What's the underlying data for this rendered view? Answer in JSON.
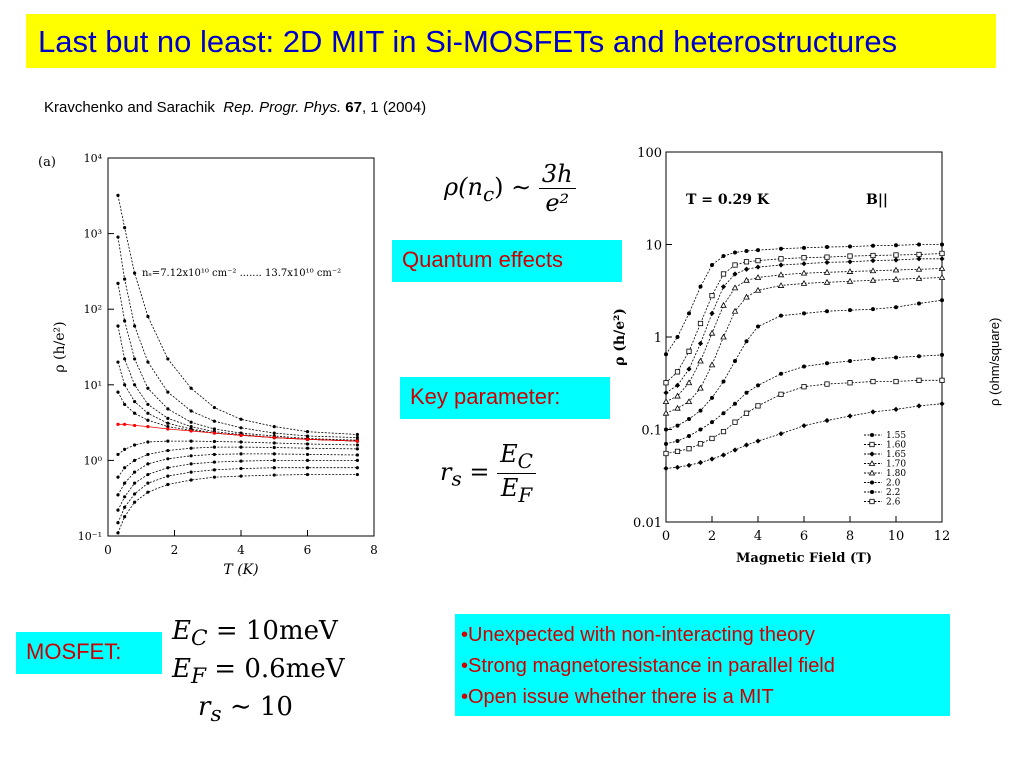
{
  "slide": {
    "title": "Last but no least: 2D MIT in Si-MOSFETs and heterostructures",
    "citation": {
      "authors": "Kravchenko and Sarachik",
      "journal": "Rep. Progr. Phys.",
      "volume": "67",
      "rest": ", 1 (2004)"
    },
    "boxes": {
      "quantum_effects": "Quantum effects",
      "key_parameter": "Key parameter:",
      "mosfet": "MOSFET:"
    },
    "bullets": [
      "•Unexpected with non-interacting theory",
      "•Strong magnetoresistance in parallel field",
      "•Open issue whether there is a MIT"
    ],
    "equations": {
      "rho_lhs": "ρ(n",
      "rho_sub": "c",
      "rho_mid": ") ∼",
      "rho_num": "3h",
      "rho_den": "e²",
      "rs_lhs": "r",
      "rs_sub": "s",
      "rs_eq": " =",
      "rs_num": "E",
      "rs_num_sub": "C",
      "rs_den": "E",
      "rs_den_sub": "F",
      "mos_line1_sym": "E",
      "mos_line1_sub": "C",
      "mos_line1_rhs": " = 10meV",
      "mos_line2_sym": "E",
      "mos_line2_sub": "F",
      "mos_line2_rhs": " = 0.6meV",
      "mos_line3_sym": "r",
      "mos_line3_sub": "s",
      "mos_line3_rhs": " ∼ 10"
    },
    "side_label": "ρ (ohm/square)"
  },
  "chart_data": [
    {
      "type": "line",
      "panel_label": "(a)",
      "xlabel": "T (K)",
      "ylabel": "ρ (h/e²)",
      "xlim": [
        0,
        8
      ],
      "ylim_log": [
        -1,
        4
      ],
      "x_ticks": [
        "0",
        "2",
        "4",
        "6",
        "8"
      ],
      "y_ticks": [
        "10⁻¹",
        "10⁰",
        "10¹",
        "10²",
        "10³",
        "10⁴"
      ],
      "annotation": "nₛ=7.12x10¹⁰ cm⁻² ....... 13.7x10¹⁰ cm⁻²",
      "highlight_color": "#ff0000",
      "x": [
        0.3,
        0.5,
        0.8,
        1.2,
        1.8,
        2.5,
        3.2,
        4.0,
        5.0,
        6.0,
        7.5
      ],
      "series": [
        {
          "values": [
            3200,
            1200,
            300,
            80,
            22,
            9,
            5,
            3.5,
            2.8,
            2.4,
            2.2
          ]
        },
        {
          "values": [
            900,
            250,
            60,
            20,
            8,
            4.5,
            3.3,
            2.7,
            2.3,
            2.1,
            2.0
          ]
        },
        {
          "values": [
            220,
            70,
            22,
            9,
            4.8,
            3.2,
            2.6,
            2.3,
            2.1,
            1.95,
            1.85
          ]
        },
        {
          "values": [
            60,
            22,
            10,
            5.5,
            3.6,
            2.8,
            2.4,
            2.2,
            2.0,
            1.9,
            1.8
          ]
        },
        {
          "values": [
            20,
            10,
            6,
            4.2,
            3.1,
            2.6,
            2.3,
            2.15,
            2.0,
            1.9,
            1.8
          ]
        },
        {
          "values": [
            8,
            5.5,
            4.2,
            3.4,
            2.8,
            2.5,
            2.3,
            2.15,
            2.0,
            1.9,
            1.8
          ]
        },
        {
          "values": [
            3.0,
            3.0,
            2.9,
            2.8,
            2.6,
            2.45,
            2.3,
            2.15,
            2.0,
            1.9,
            1.8
          ],
          "highlight": true
        },
        {
          "values": [
            1.2,
            1.4,
            1.6,
            1.75,
            1.8,
            1.8,
            1.78,
            1.75,
            1.7,
            1.65,
            1.6
          ]
        },
        {
          "values": [
            0.6,
            0.8,
            1.0,
            1.2,
            1.35,
            1.45,
            1.5,
            1.5,
            1.48,
            1.45,
            1.42
          ]
        },
        {
          "values": [
            0.35,
            0.5,
            0.7,
            0.9,
            1.05,
            1.15,
            1.2,
            1.22,
            1.22,
            1.2,
            1.18
          ]
        },
        {
          "values": [
            0.22,
            0.33,
            0.5,
            0.65,
            0.8,
            0.9,
            0.95,
            0.98,
            1.0,
            1.0,
            1.0
          ]
        },
        {
          "values": [
            0.15,
            0.24,
            0.36,
            0.5,
            0.62,
            0.7,
            0.75,
            0.78,
            0.8,
            0.8,
            0.8
          ]
        },
        {
          "values": [
            0.11,
            0.18,
            0.28,
            0.38,
            0.48,
            0.55,
            0.6,
            0.62,
            0.64,
            0.65,
            0.65
          ]
        }
      ]
    },
    {
      "type": "scatter",
      "xlabel": "Magnetic Field (T)",
      "ylabel": "ρ (h/e²)",
      "title": "T = 0.29 K",
      "field_label": "B||",
      "xlim": [
        0,
        12
      ],
      "ylim_log": [
        -2,
        2
      ],
      "x_ticks": [
        "0",
        "2",
        "4",
        "6",
        "8",
        "10",
        "12"
      ],
      "y_ticks": [
        "0.01",
        "0.1",
        "1",
        "10",
        "100"
      ],
      "x": [
        0,
        0.5,
        1,
        1.5,
        2,
        2.5,
        3,
        3.5,
        4,
        5,
        6,
        7,
        8,
        9,
        10,
        11,
        12
      ],
      "series": [
        {
          "name": "1.55",
          "values": [
            0.65,
            1.0,
            1.8,
            3.5,
            6.0,
            7.5,
            8.2,
            8.5,
            8.7,
            9.0,
            9.2,
            9.4,
            9.5,
            9.7,
            9.8,
            10.0,
            10.0
          ]
        },
        {
          "name": "1.60",
          "values": [
            0.32,
            0.42,
            0.7,
            1.4,
            2.8,
            4.8,
            6.0,
            6.5,
            6.7,
            7.0,
            7.2,
            7.3,
            7.5,
            7.6,
            7.7,
            7.8,
            8.0
          ]
        },
        {
          "name": "1.65",
          "values": [
            0.25,
            0.3,
            0.45,
            0.85,
            1.8,
            3.5,
            4.8,
            5.4,
            5.7,
            6.0,
            6.2,
            6.4,
            6.5,
            6.7,
            6.8,
            7.0,
            7.0
          ]
        },
        {
          "name": "1.70",
          "values": [
            0.2,
            0.23,
            0.32,
            0.55,
            1.1,
            2.2,
            3.4,
            4.1,
            4.4,
            4.7,
            4.9,
            5.0,
            5.1,
            5.2,
            5.3,
            5.4,
            5.5
          ]
        },
        {
          "name": "1.80",
          "values": [
            0.15,
            0.17,
            0.2,
            0.28,
            0.5,
            1.0,
            1.9,
            2.7,
            3.2,
            3.6,
            3.8,
            3.9,
            4.0,
            4.1,
            4.2,
            4.3,
            4.4
          ]
        },
        {
          "name": "2.0",
          "values": [
            0.1,
            0.11,
            0.13,
            0.16,
            0.22,
            0.33,
            0.55,
            0.9,
            1.3,
            1.7,
            1.8,
            1.9,
            1.95,
            2.0,
            2.1,
            2.3,
            2.5
          ]
        },
        {
          "name": "2.2",
          "values": [
            0.07,
            0.075,
            0.085,
            0.1,
            0.12,
            0.15,
            0.19,
            0.25,
            0.3,
            0.4,
            0.48,
            0.52,
            0.55,
            0.58,
            0.6,
            0.62,
            0.64
          ]
        },
        {
          "name": "2.6",
          "values": [
            0.055,
            0.058,
            0.062,
            0.07,
            0.08,
            0.095,
            0.12,
            0.15,
            0.18,
            0.24,
            0.29,
            0.31,
            0.32,
            0.33,
            0.33,
            0.34,
            0.34
          ]
        },
        {
          "name": "",
          "values": [
            0.038,
            0.039,
            0.041,
            0.044,
            0.048,
            0.053,
            0.06,
            0.068,
            0.075,
            0.09,
            0.11,
            0.125,
            0.14,
            0.155,
            0.165,
            0.18,
            0.19
          ]
        }
      ]
    }
  ]
}
